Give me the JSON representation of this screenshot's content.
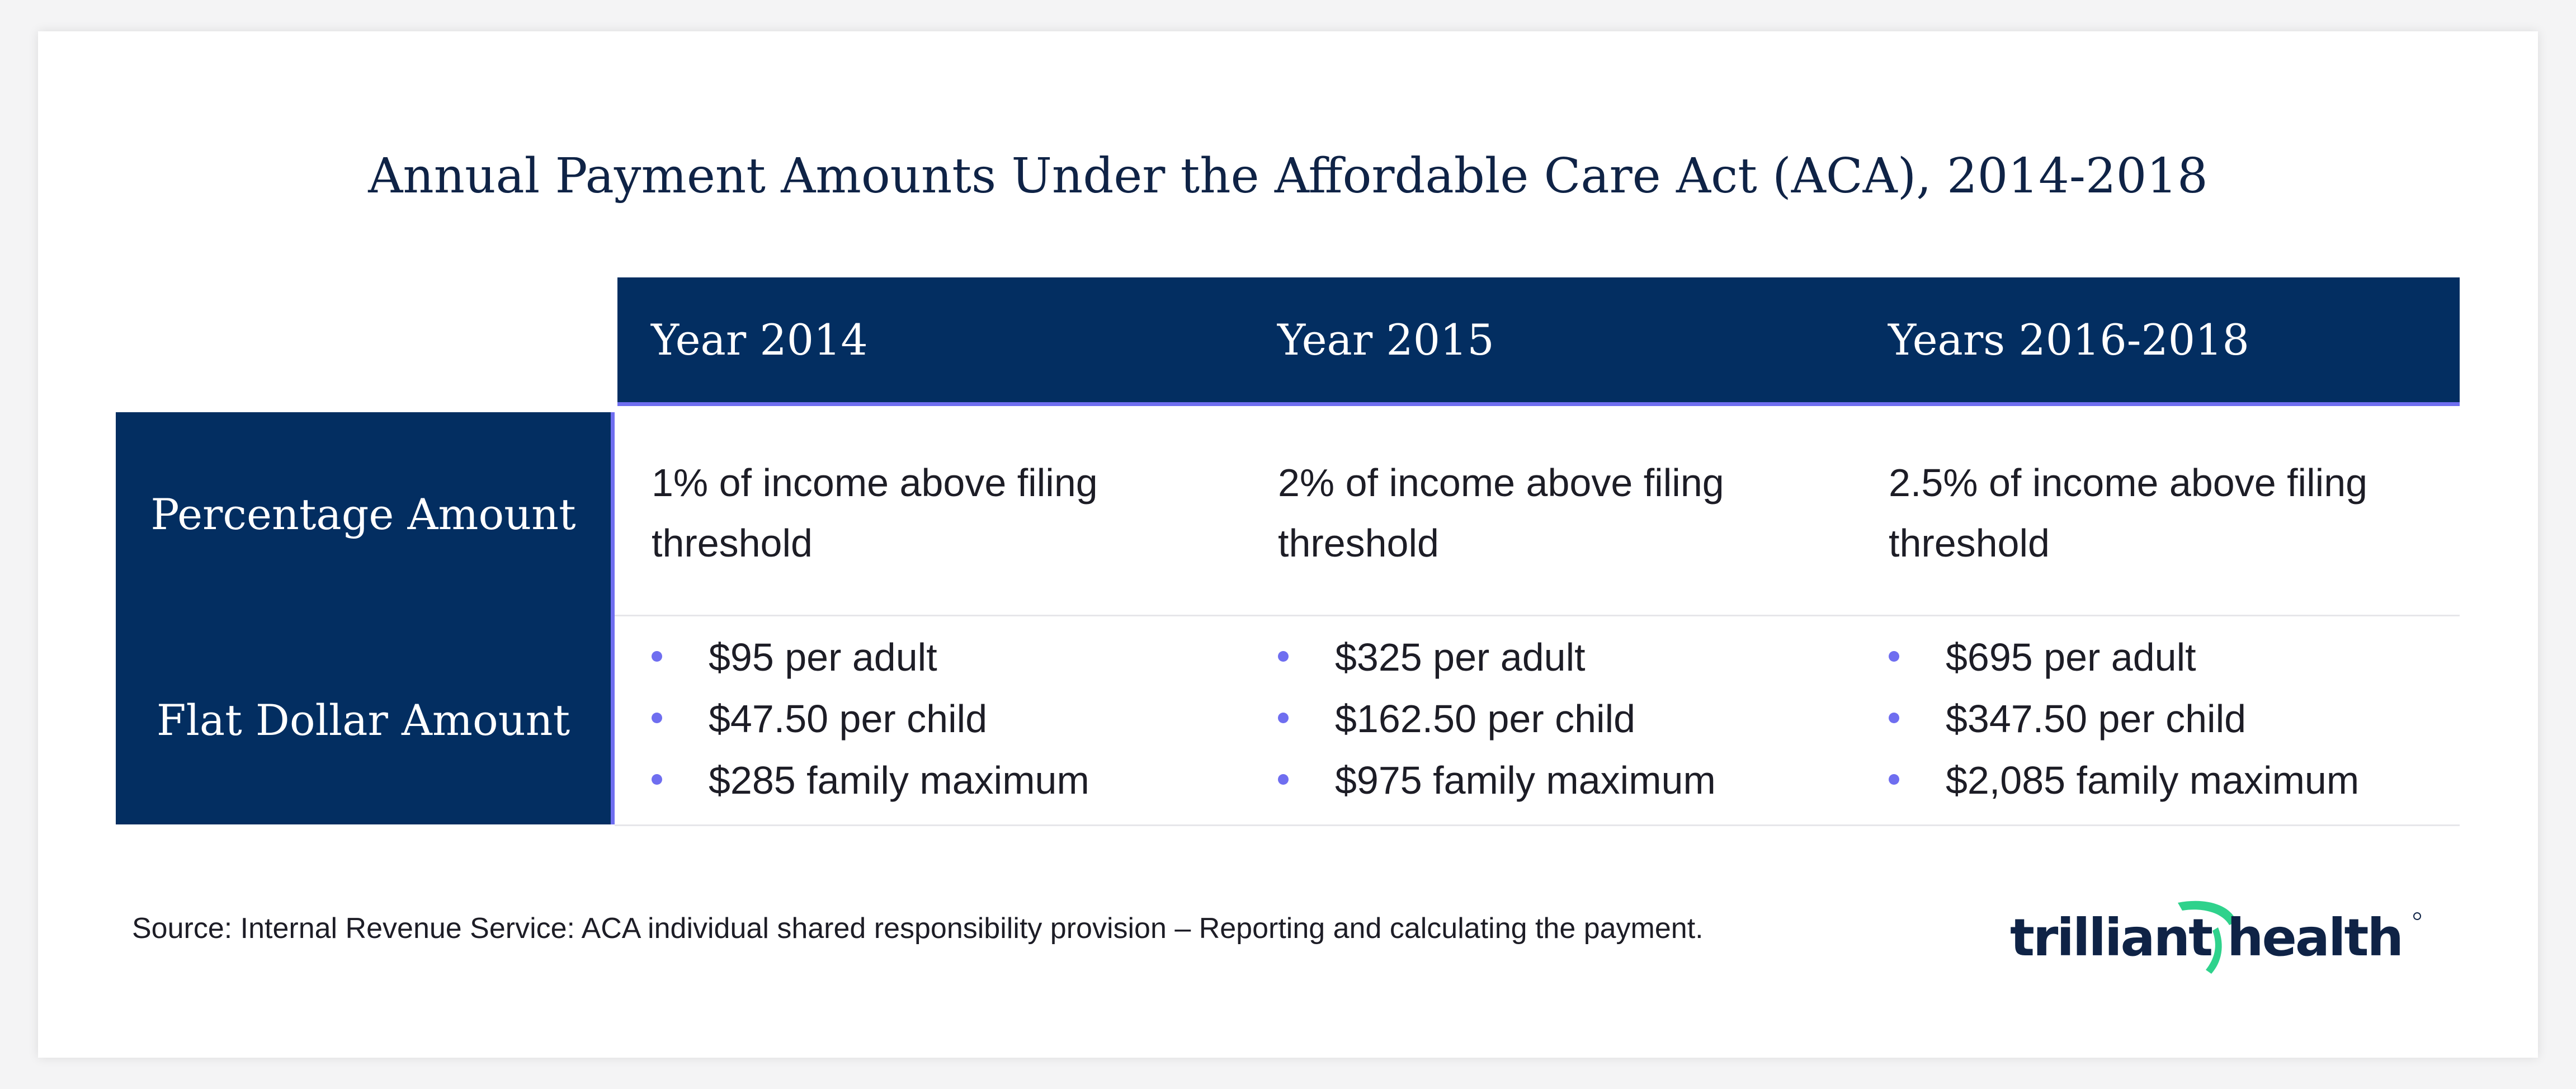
{
  "title": "Annual Payment Amounts Under the Affordable Care Act (ACA), 2014-2018",
  "columns": [
    "Year 2014",
    "Year 2015",
    "Years 2016-2018"
  ],
  "rows": {
    "percentage": {
      "label": "Percentage Amount",
      "cells": [
        "1% of income above filing threshold",
        "2% of income above filing threshold",
        "2.5% of income above filing threshold"
      ]
    },
    "flat": {
      "label": "Flat Dollar Amount",
      "cells": [
        [
          "$95 per adult",
          "$47.50 per child",
          "$285 family maximum"
        ],
        [
          "$325 per adult",
          "$162.50 per child",
          "$975 family maximum"
        ],
        [
          "$695 per adult",
          "$347.50 per child",
          "$2,085 family maximum"
        ]
      ]
    }
  },
  "source": "Source: Internal Revenue Service: ACA individual shared responsibility provision – Reporting and calculating the payment.",
  "logo": {
    "text": "trilliant health",
    "icon": "trilliant-health-logo"
  },
  "colors": {
    "navy": "#032e61",
    "accent": "#6f6ef0",
    "logo_text": "#0f2346",
    "logo_mark": "#2fd28c"
  }
}
